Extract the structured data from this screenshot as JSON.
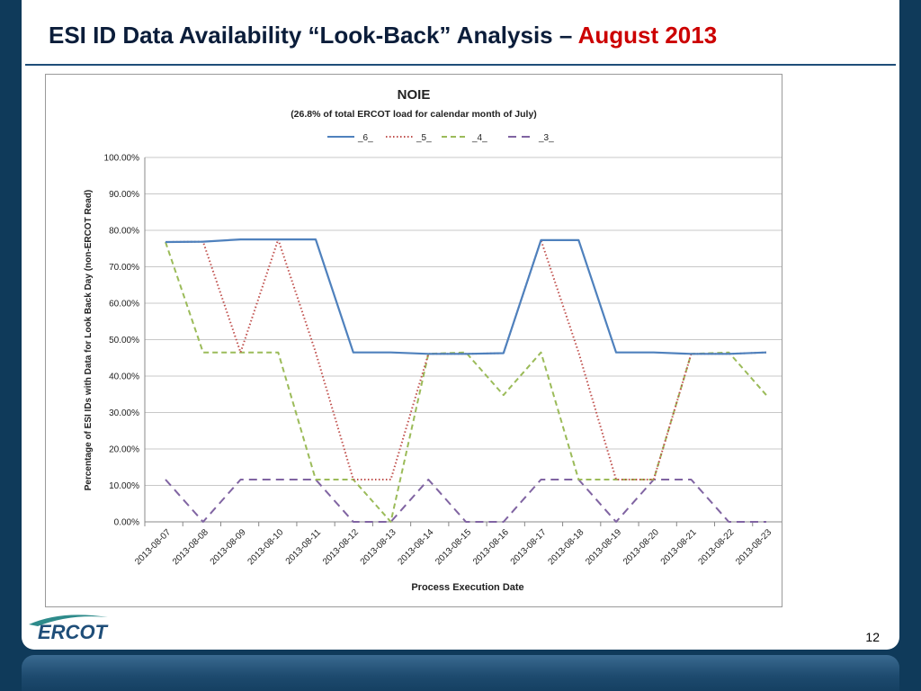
{
  "slide": {
    "title_main": "ESI ID Data Availability “Look-Back” Analysis – ",
    "title_accent": "August 2013",
    "page_number": "12",
    "logo_text": "ERCOT",
    "colors": {
      "title": "#0b1d3a",
      "accent": "#cc0000",
      "background": "#0f3a5a"
    }
  },
  "chart_data": {
    "type": "line",
    "title": "NOIE",
    "subtitle": "(26.8% of total ERCOT load for calendar month of July)",
    "xlabel": "Process Execution Date",
    "ylabel": "Percentage of ESI IDs with Data for Look Back Day (non-ERCOT Read)",
    "ylim": [
      0,
      100
    ],
    "yticks": [
      "0.00%",
      "10.00%",
      "20.00%",
      "30.00%",
      "40.00%",
      "50.00%",
      "60.00%",
      "70.00%",
      "80.00%",
      "90.00%",
      "100.00%"
    ],
    "grid": true,
    "legend_position": "top",
    "categories": [
      "2013-08-07",
      "2013-08-08",
      "2013-08-09",
      "2013-08-10",
      "2013-08-11",
      "2013-08-12",
      "2013-08-13",
      "2013-08-14",
      "2013-08-15",
      "2013-08-16",
      "2013-08-17",
      "2013-08-18",
      "2013-08-19",
      "2013-08-20",
      "2013-08-21",
      "2013-08-22",
      "2013-08-23"
    ],
    "series": [
      {
        "name": "_6_",
        "color": "#4f81bd",
        "dash": "solid",
        "values": [
          76.8,
          76.9,
          77.5,
          77.5,
          77.5,
          46.5,
          46.5,
          46.1,
          46.1,
          46.3,
          77.3,
          77.3,
          46.5,
          46.5,
          46.1,
          46.1,
          46.5
        ]
      },
      {
        "name": "_5_",
        "color": "#c0504d",
        "dash": "dotted",
        "values": [
          76.8,
          76.9,
          46.5,
          77.5,
          46.5,
          11.6,
          11.6,
          46.1,
          46.1,
          46.3,
          77.3,
          46.5,
          11.6,
          11.6,
          46.1,
          46.1,
          46.5
        ]
      },
      {
        "name": "_4_",
        "color": "#9bbb59",
        "dash": "dashed",
        "values": [
          76.8,
          46.5,
          46.5,
          46.5,
          11.6,
          11.6,
          0.0,
          46.1,
          46.5,
          34.8,
          46.5,
          11.6,
          11.6,
          11.6,
          46.1,
          46.5,
          34.8
        ]
      },
      {
        "name": "_3_",
        "color": "#8064a2",
        "dash": "longdash",
        "values": [
          11.6,
          0.0,
          11.6,
          11.6,
          11.6,
          0.0,
          0.0,
          11.6,
          0.0,
          0.0,
          11.6,
          11.6,
          0.0,
          11.6,
          11.6,
          0.0,
          0.0
        ]
      }
    ]
  }
}
